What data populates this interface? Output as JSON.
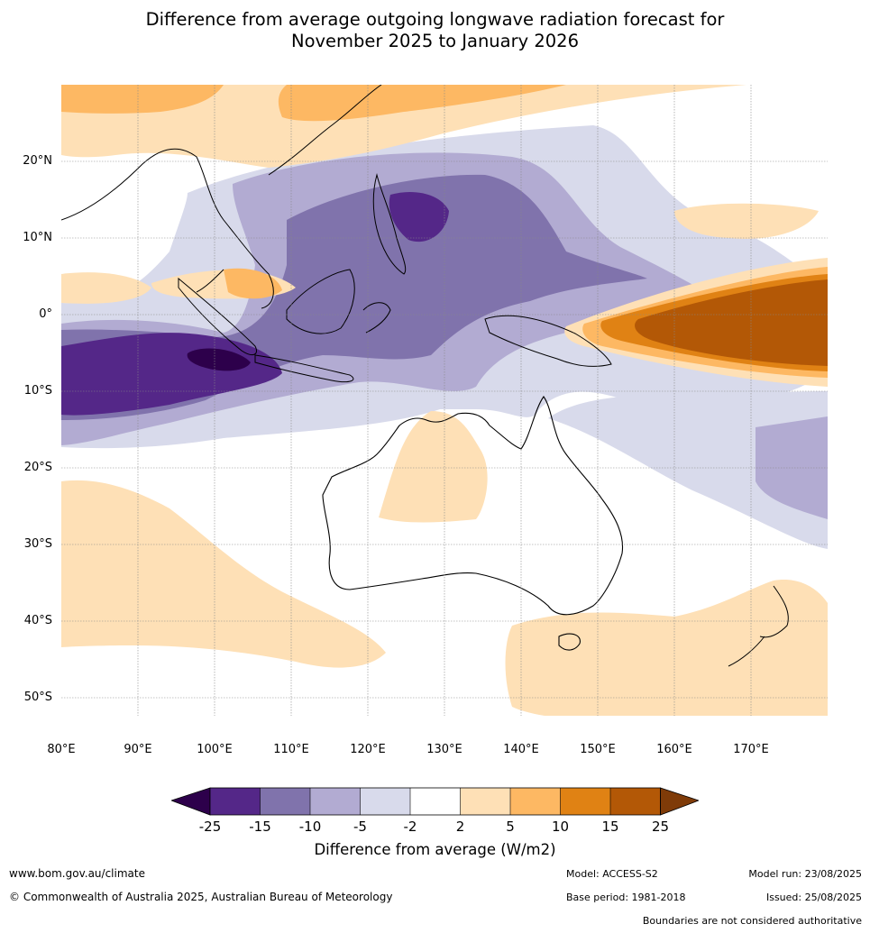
{
  "title": {
    "line1": "Difference from average outgoing longwave radiation forecast for",
    "line2": "November 2025 to January 2026"
  },
  "map": {
    "lat_labels": [
      "20°N",
      "10°N",
      "0°",
      "10°S",
      "20°S",
      "30°S",
      "40°S",
      "50°S"
    ],
    "lon_labels": [
      "80°E",
      "90°E",
      "100°E",
      "110°E",
      "120°E",
      "130°E",
      "140°E",
      "150°E",
      "160°E",
      "170°E"
    ]
  },
  "colorbar": {
    "ticks": [
      "-25",
      "-15",
      "-10",
      "-5",
      "-2",
      "2",
      "5",
      "10",
      "15",
      "25"
    ],
    "colors": [
      "#2d004b",
      "#542788",
      "#8073ac",
      "#b2abd2",
      "#d8daeb",
      "#ffffff",
      "#fee0b6",
      "#fdb863",
      "#e08214",
      "#b35806",
      "#7f3b08"
    ],
    "label": "Difference from average (W/m2)"
  },
  "footer": {
    "website": "www.bom.gov.au/climate",
    "copyright": "© Commonwealth of Australia 2025, Australian Bureau of Meteorology",
    "model": "Model: ACCESS-S2",
    "base_period": "Base period: 1981-2018",
    "model_run": "Model run: 23/08/2025",
    "issued": "Issued: 25/08/2025",
    "disclaimer": "Boundaries are not considered authoritative"
  }
}
